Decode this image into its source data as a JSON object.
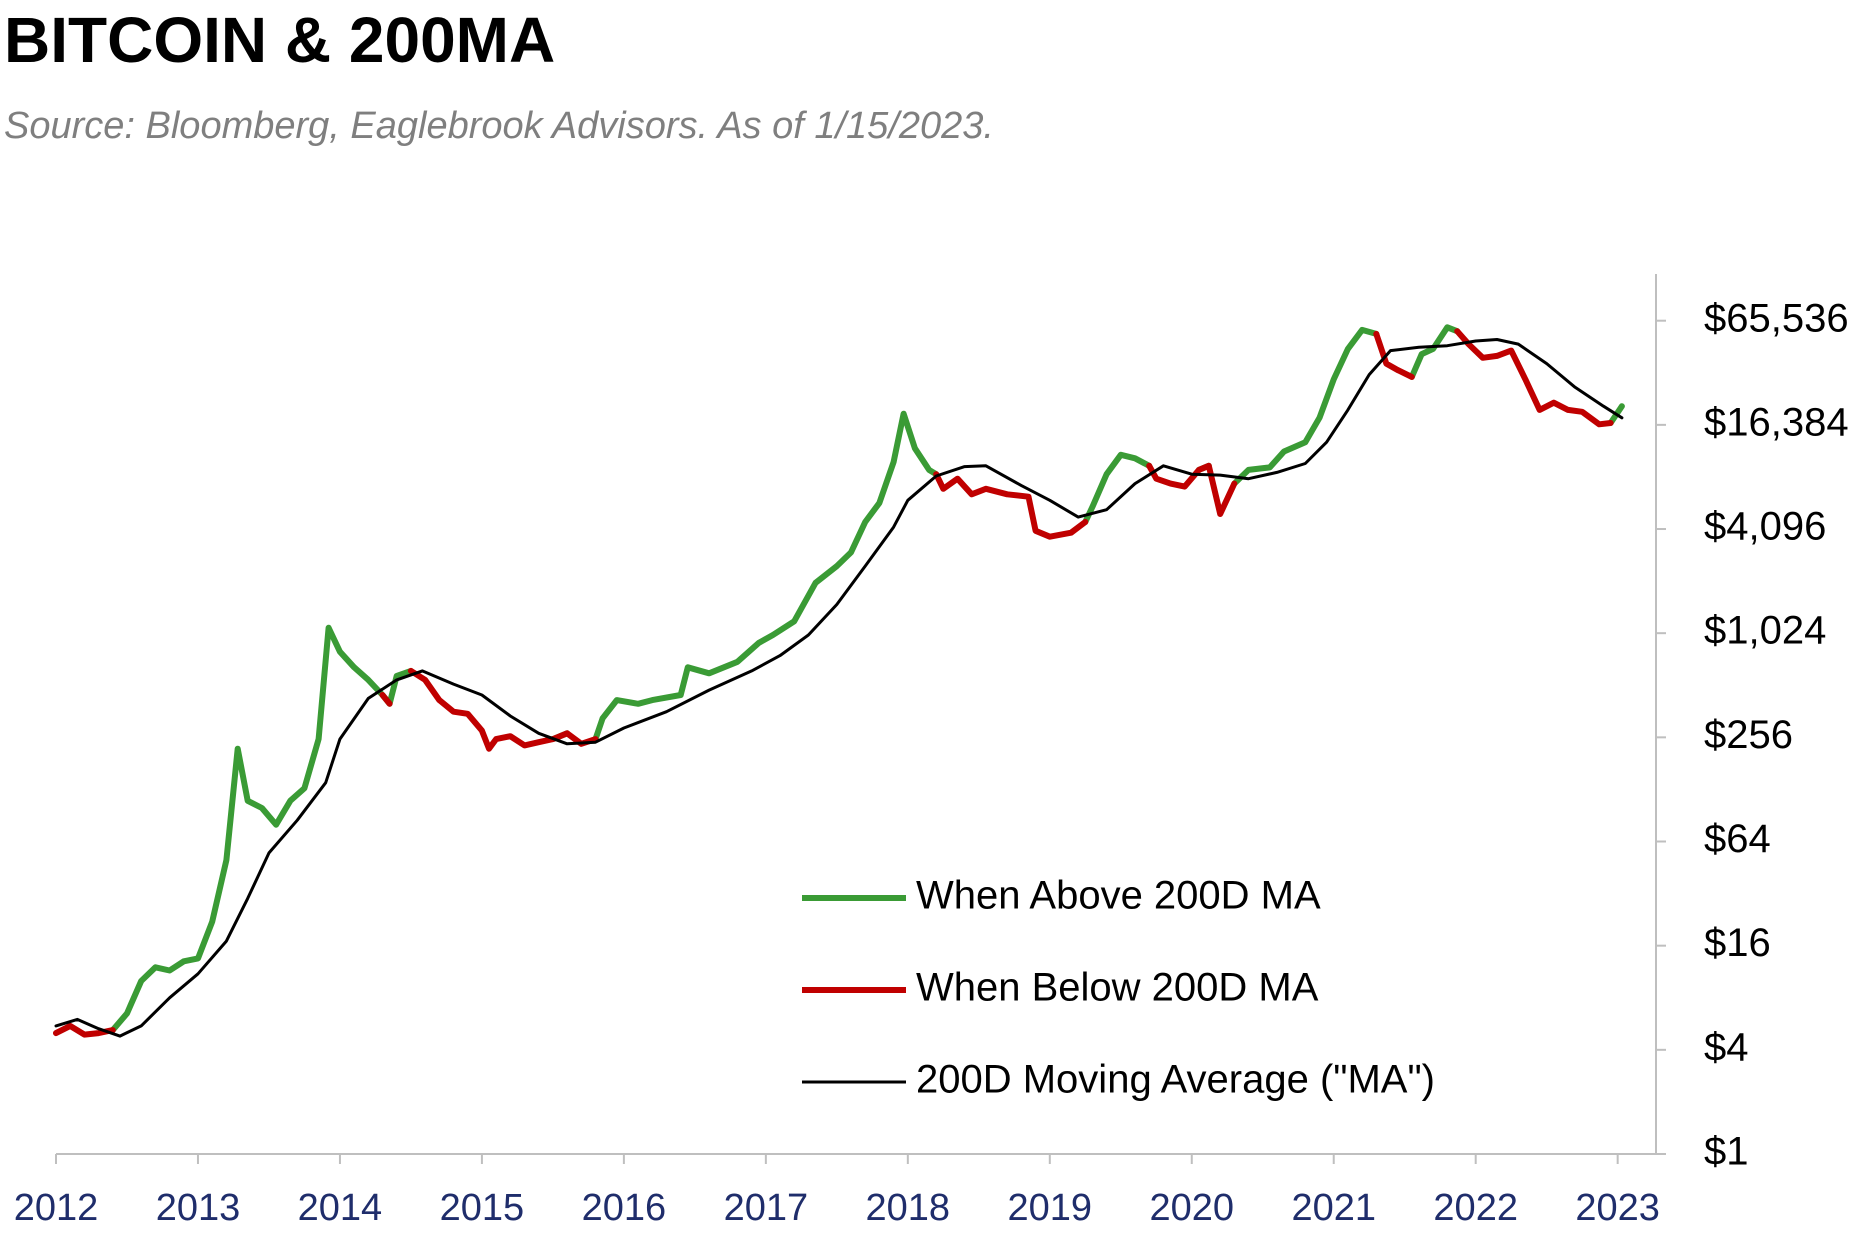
{
  "chart_data": {
    "type": "line",
    "title": "BITCOIN & 200MA",
    "subtitle": "Source: Bloomberg, Eaglebrook Advisors. As of 1/15/2023.",
    "yscale": "log",
    "legend": "bottom",
    "xlim": [
      2012,
      2023.27
    ],
    "xticks": [
      2012,
      2013,
      2014,
      2015,
      2016,
      2017,
      2018,
      2019,
      2020,
      2021,
      2022,
      2023
    ],
    "ylim": [
      1,
      122000
    ],
    "yticks": [
      {
        "value": 1,
        "label": "$1"
      },
      {
        "value": 4,
        "label": "$4"
      },
      {
        "value": 16,
        "label": "$16"
      },
      {
        "value": 64,
        "label": "$64"
      },
      {
        "value": 256,
        "label": "$256"
      },
      {
        "value": 1024,
        "label": "$1,024"
      },
      {
        "value": 4096,
        "label": "$4,096"
      },
      {
        "value": 16384,
        "label": "$16,384"
      },
      {
        "value": 65536,
        "label": "$65,536"
      }
    ],
    "series": [
      {
        "name": "When Above 200D MA",
        "color": "#3a9b35",
        "width": 6,
        "x": [
          2012.0,
          2012.1,
          2012.2,
          2012.3,
          2012.4,
          2012.5,
          2012.6,
          2012.7,
          2012.8,
          2012.9,
          2013.0,
          2013.1,
          2013.2,
          2013.28,
          2013.35,
          2013.45,
          2013.55,
          2013.65,
          2013.75,
          2013.85,
          2013.92,
          2014.0,
          2014.1,
          2014.2,
          2014.3,
          2014.35,
          2014.4,
          2014.5,
          2014.6,
          2014.7,
          2014.8,
          2014.9,
          2015.0,
          2015.05,
          2015.1,
          2015.2,
          2015.3,
          2015.4,
          2015.5,
          2015.6,
          2015.7,
          2015.8,
          2015.85,
          2015.95,
          2016.1,
          2016.2,
          2016.4,
          2016.45,
          2016.6,
          2016.8,
          2016.95,
          2017.05,
          2017.2,
          2017.35,
          2017.5,
          2017.6,
          2017.7,
          2017.8,
          2017.9,
          2017.97,
          2018.05,
          2018.15,
          2018.2,
          2018.25,
          2018.35,
          2018.45,
          2018.55,
          2018.7,
          2018.85,
          2018.9,
          2019.0,
          2019.15,
          2019.25,
          2019.3,
          2019.4,
          2019.5,
          2019.6,
          2019.7,
          2019.75,
          2019.85,
          2019.95,
          2020.05,
          2020.12,
          2020.2,
          2020.3,
          2020.4,
          2020.55,
          2020.65,
          2020.8,
          2020.9,
          2021.0,
          2021.1,
          2021.2,
          2021.3,
          2021.37,
          2021.45,
          2021.55,
          2021.62,
          2021.7,
          2021.8,
          2021.87,
          2021.95,
          2022.05,
          2022.15,
          2022.25,
          2022.35,
          2022.45,
          2022.55,
          2022.65,
          2022.75,
          2022.87,
          2022.95,
          2023.03
        ],
        "values": [
          null,
          null,
          null,
          null,
          5.2,
          6.5,
          10,
          12,
          11.5,
          13,
          13.5,
          22,
          50,
          220,
          110,
          100,
          80,
          110,
          130,
          250,
          1100,
          800,
          650,
          550,
          450,
          400,
          580,
          620,
          null,
          null,
          null,
          null,
          null,
          null,
          null,
          null,
          null,
          null,
          250,
          270,
          null,
          250,
          330,
          420,
          400,
          420,
          450,
          650,
          600,
          700,
          900,
          1000,
          1200,
          2000,
          2500,
          3000,
          4500,
          5800,
          10000,
          19000,
          12000,
          9000,
          8500,
          null,
          null,
          null,
          null,
          null,
          null,
          null,
          null,
          null,
          4500,
          5500,
          8500,
          11000,
          10500,
          9500,
          null,
          null,
          null,
          9000,
          9500,
          null,
          7500,
          9000,
          9300,
          11500,
          13000,
          18000,
          30000,
          45000,
          58000,
          55000,
          null,
          null,
          31000,
          42000,
          45000,
          60000,
          57000,
          null,
          null,
          null,
          null,
          null,
          null,
          null,
          null,
          null,
          null,
          16800,
          21000
        ]
      },
      {
        "name": "When Below 200D MA",
        "color": "#c00000",
        "width": 6,
        "x": [
          2012.0,
          2012.1,
          2012.2,
          2012.3,
          2012.4,
          2012.5,
          2012.6,
          2012.7,
          2012.8,
          2012.9,
          2013.0,
          2013.1,
          2013.2,
          2013.28,
          2013.35,
          2013.45,
          2013.55,
          2013.65,
          2013.75,
          2013.85,
          2013.92,
          2014.0,
          2014.1,
          2014.2,
          2014.3,
          2014.35,
          2014.4,
          2014.5,
          2014.6,
          2014.7,
          2014.8,
          2014.9,
          2015.0,
          2015.05,
          2015.1,
          2015.2,
          2015.3,
          2015.4,
          2015.5,
          2015.6,
          2015.7,
          2015.8,
          2015.85,
          2015.95,
          2016.1,
          2016.2,
          2016.4,
          2016.45,
          2016.6,
          2016.8,
          2016.95,
          2017.05,
          2017.2,
          2017.35,
          2017.5,
          2017.6,
          2017.7,
          2017.8,
          2017.9,
          2017.97,
          2018.05,
          2018.15,
          2018.2,
          2018.25,
          2018.35,
          2018.45,
          2018.55,
          2018.7,
          2018.85,
          2018.9,
          2019.0,
          2019.15,
          2019.25,
          2019.3,
          2019.4,
          2019.5,
          2019.6,
          2019.7,
          2019.75,
          2019.85,
          2019.95,
          2020.05,
          2020.12,
          2020.2,
          2020.3,
          2020.4,
          2020.55,
          2020.65,
          2020.8,
          2020.9,
          2021.0,
          2021.1,
          2021.2,
          2021.3,
          2021.37,
          2021.45,
          2021.55,
          2021.62,
          2021.7,
          2021.8,
          2021.87,
          2021.95,
          2022.05,
          2022.15,
          2022.25,
          2022.35,
          2022.45,
          2022.55,
          2022.65,
          2022.75,
          2022.87,
          2022.95,
          2023.03
        ],
        "values": [
          5,
          5.5,
          4.9,
          5,
          5.2,
          null,
          null,
          null,
          null,
          null,
          null,
          null,
          null,
          null,
          null,
          null,
          null,
          null,
          null,
          null,
          null,
          null,
          null,
          null,
          450,
          400,
          null,
          620,
          550,
          420,
          360,
          350,
          280,
          220,
          250,
          260,
          230,
          240,
          250,
          270,
          235,
          250,
          null,
          null,
          null,
          null,
          null,
          null,
          null,
          null,
          null,
          null,
          null,
          null,
          null,
          null,
          null,
          null,
          null,
          null,
          null,
          null,
          8500,
          7000,
          8000,
          6500,
          7000,
          6500,
          6300,
          4000,
          3700,
          3900,
          4500,
          null,
          null,
          null,
          null,
          9500,
          8000,
          7500,
          7200,
          9000,
          9500,
          5000,
          7500,
          null,
          null,
          null,
          null,
          null,
          null,
          null,
          null,
          55000,
          37000,
          34000,
          31000,
          null,
          null,
          null,
          57000,
          48000,
          40000,
          41000,
          44000,
          30000,
          20000,
          22000,
          20000,
          19500,
          16500,
          16800,
          null
        ]
      },
      {
        "name": "200D Moving Average (\"MA\")",
        "color": "#000000",
        "width": 3,
        "x": [
          2012.0,
          2012.15,
          2012.3,
          2012.45,
          2012.6,
          2012.8,
          2013.0,
          2013.2,
          2013.35,
          2013.5,
          2013.7,
          2013.9,
          2014.0,
          2014.2,
          2014.4,
          2014.58,
          2014.8,
          2015.0,
          2015.2,
          2015.4,
          2015.6,
          2015.8,
          2016.0,
          2016.3,
          2016.6,
          2016.9,
          2017.1,
          2017.3,
          2017.5,
          2017.7,
          2017.9,
          2018.0,
          2018.2,
          2018.4,
          2018.55,
          2018.8,
          2019.0,
          2019.2,
          2019.4,
          2019.6,
          2019.8,
          2020.0,
          2020.2,
          2020.4,
          2020.6,
          2020.8,
          2020.95,
          2021.1,
          2021.25,
          2021.4,
          2021.6,
          2021.8,
          2022.0,
          2022.15,
          2022.3,
          2022.5,
          2022.7,
          2022.9,
          2023.03
        ],
        "values": [
          5.5,
          6,
          5.3,
          4.8,
          5.5,
          8,
          11,
          17,
          30,
          55,
          85,
          140,
          250,
          430,
          550,
          620,
          520,
          450,
          340,
          270,
          235,
          240,
          290,
          360,
          480,
          620,
          760,
          1000,
          1500,
          2500,
          4200,
          6000,
          8300,
          9400,
          9500,
          7300,
          6000,
          4800,
          5300,
          7500,
          9500,
          8500,
          8400,
          8000,
          8700,
          9800,
          13000,
          20000,
          32000,
          44000,
          46000,
          47000,
          50000,
          51000,
          48000,
          37000,
          27000,
          21000,
          18000
        ]
      }
    ]
  }
}
